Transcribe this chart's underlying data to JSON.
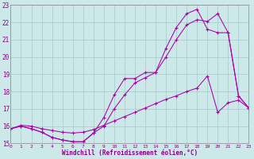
{
  "xlabel": "Windchill (Refroidissement éolien,°C)",
  "xlim": [
    0,
    23
  ],
  "ylim": [
    15,
    23
  ],
  "xticks": [
    0,
    1,
    2,
    3,
    4,
    5,
    6,
    7,
    8,
    9,
    10,
    11,
    12,
    13,
    14,
    15,
    16,
    17,
    18,
    19,
    20,
    21,
    22,
    23
  ],
  "yticks": [
    15,
    16,
    17,
    18,
    19,
    20,
    21,
    22,
    23
  ],
  "background_color": "#cce8e8",
  "grid_color": "#aad0d0",
  "line_color": "#aa00aa",
  "curve1_x": [
    0,
    1,
    2,
    3,
    4,
    5,
    6,
    7,
    8,
    9,
    10,
    11,
    12,
    13,
    14,
    15,
    16,
    17,
    18,
    19,
    20,
    21,
    22,
    23
  ],
  "curve1_y": [
    15.85,
    16.0,
    15.85,
    15.65,
    15.35,
    15.2,
    15.1,
    15.1,
    15.6,
    16.5,
    17.8,
    18.75,
    18.75,
    19.1,
    19.1,
    20.0,
    21.0,
    21.85,
    22.15,
    22.05,
    22.5,
    21.4,
    17.75,
    17.05
  ],
  "curve2_x": [
    0,
    1,
    2,
    3,
    4,
    5,
    6,
    7,
    8,
    9,
    10,
    11,
    12,
    13,
    14,
    15,
    16,
    17,
    18,
    19,
    20,
    21,
    22,
    23
  ],
  "curve2_y": [
    15.85,
    16.0,
    15.85,
    15.65,
    15.35,
    15.2,
    15.1,
    15.1,
    15.6,
    16.0,
    17.0,
    17.8,
    18.5,
    18.8,
    19.1,
    20.5,
    21.7,
    22.5,
    22.75,
    21.6,
    21.4,
    21.4,
    17.75,
    17.05
  ],
  "curve3_x": [
    0,
    1,
    2,
    3,
    4,
    5,
    6,
    7,
    8,
    9,
    10,
    11,
    12,
    13,
    14,
    15,
    16,
    17,
    18,
    19,
    20,
    21,
    22,
    23
  ],
  "curve3_y": [
    15.85,
    16.05,
    16.0,
    15.85,
    15.75,
    15.65,
    15.6,
    15.65,
    15.8,
    16.05,
    16.3,
    16.55,
    16.8,
    17.05,
    17.3,
    17.55,
    17.75,
    18.0,
    18.2,
    18.9,
    16.8,
    17.35,
    17.5,
    17.05
  ]
}
